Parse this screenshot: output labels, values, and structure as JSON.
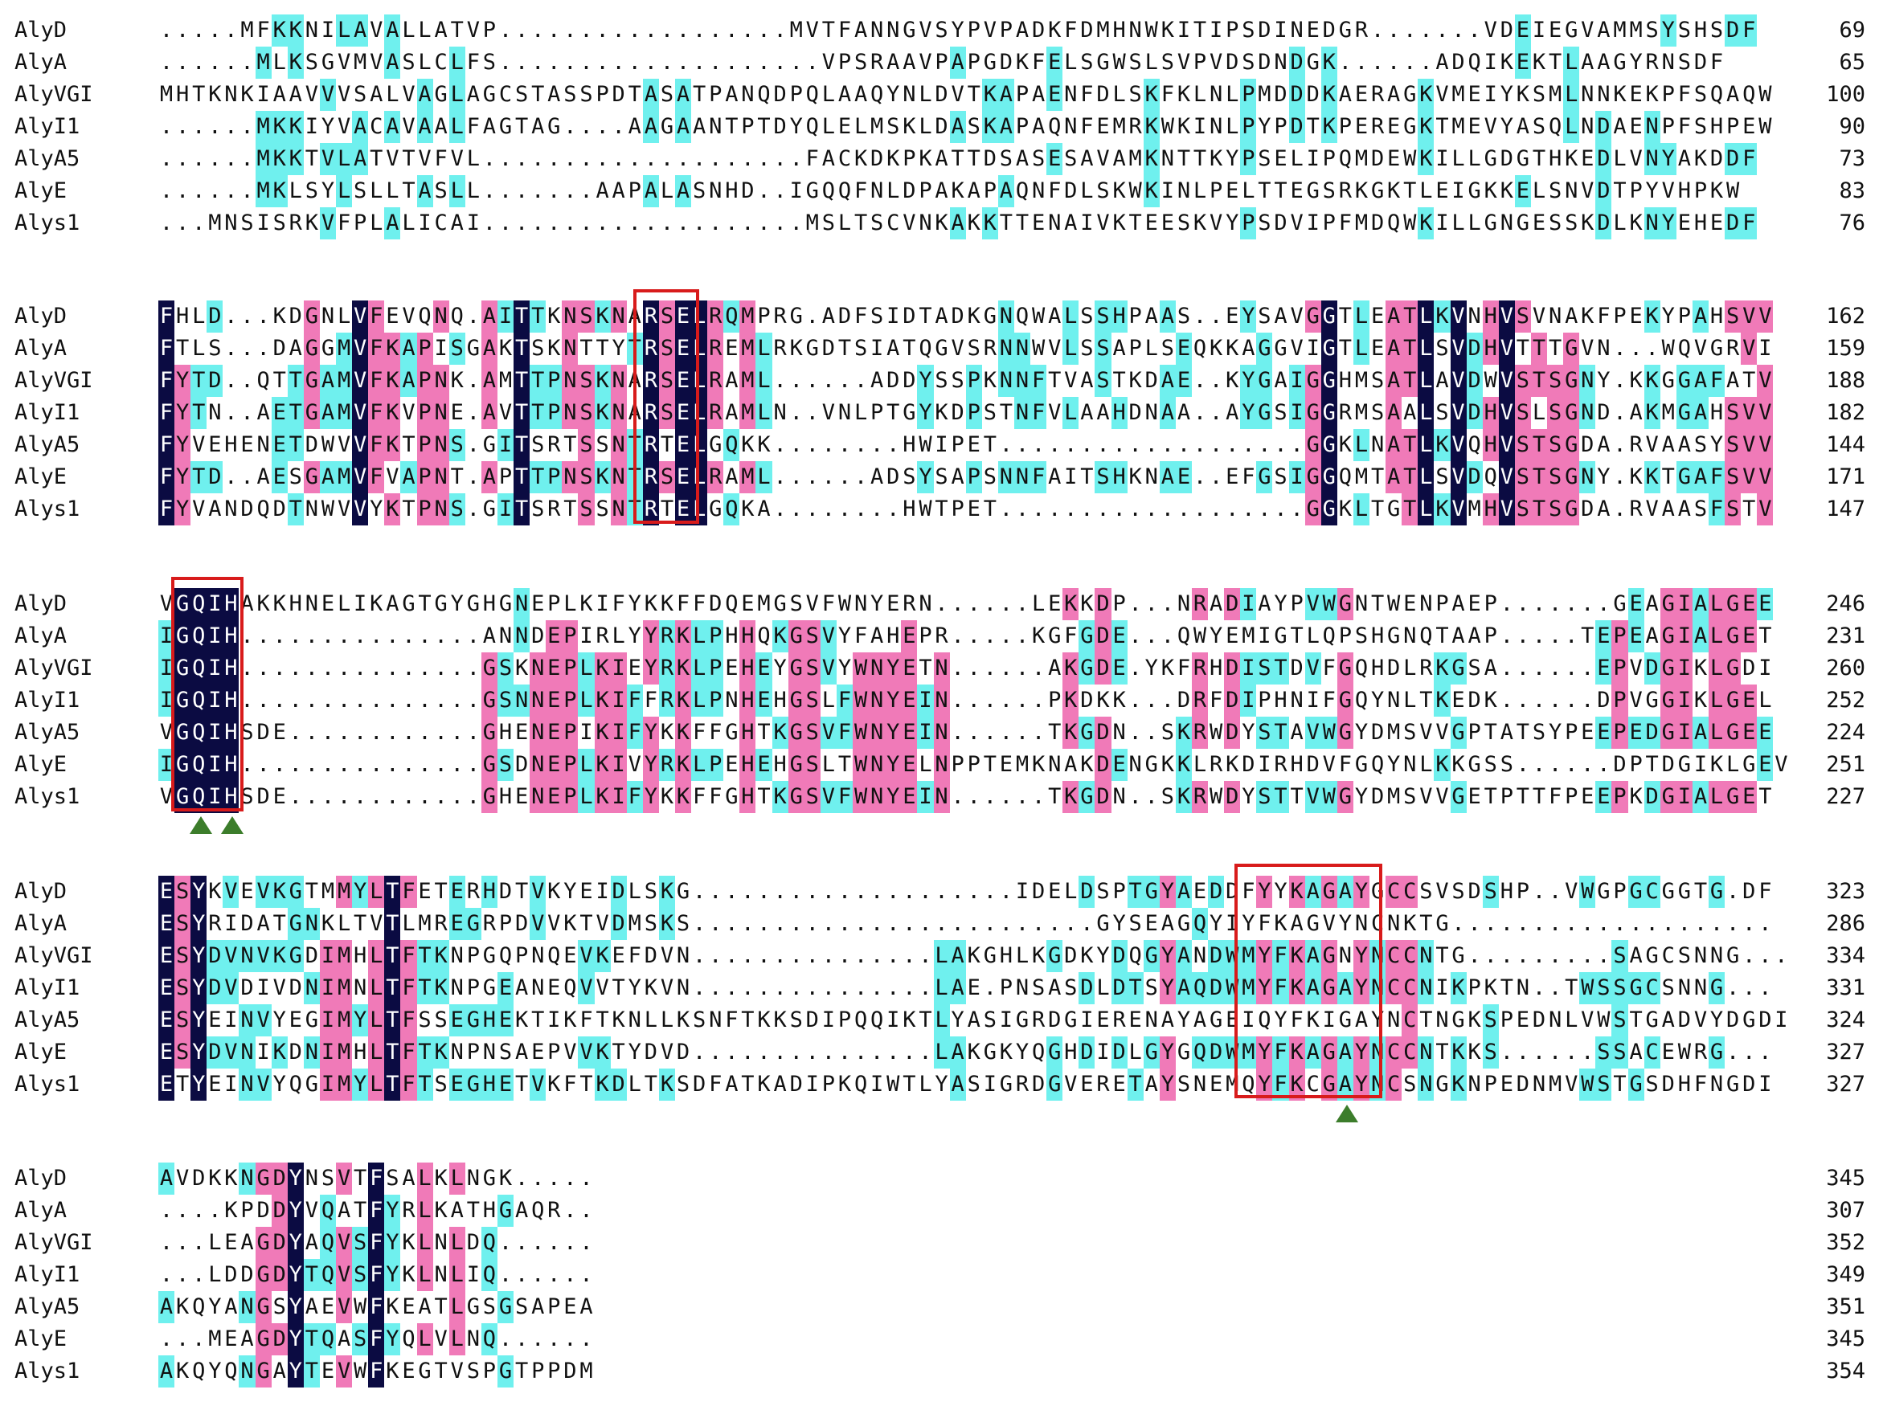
{
  "blocks": [
    {
      "rows": [
        {
          "name": "AlyD",
          "seq": ".....MFKKNILAVALLATVP..................MVTFANNGVSYPVPADKFDMHNWKITIPSDINEDGR.......VDEIEGVAMMSYSHSDF",
          "end": "69"
        },
        {
          "name": "AlyA",
          "seq": "......MLKSGVMVASLCLFS....................VPSRAAVPAPGDKFELSGWSLSVPVDSDNDGK......ADQIKEKTLAAGYRNSDF",
          "end": "65"
        },
        {
          "name": "AlyVGI",
          "seq": "MHTKNKIAAVVVSALVAGLAGCSTASSPDTASATPANQDPQLAAQYNLDVTKAPAENFDLSKFKLNLPMDDDKAERAGKVMEIYKSMLNNKEKPFSQAQW",
          "end": "100"
        },
        {
          "name": "AlyI1",
          "seq": "......MKKIYVACAVAALFAGTAG....AAGAANTPTDYQLELMSKLDASKAPAQNFEMRKWKINLPYPDTKPEREGKTMEVYASQLNDAENPFSHPEW",
          "end": "90"
        },
        {
          "name": "AlyA5",
          "seq": "......MKKTVLATVTVFVL....................FACKDKPKATTDSASESAVAMKNTTKYPSELIPQMDEWKILLGDGTHKEDLVNYAKDDF",
          "end": "73"
        },
        {
          "name": "AlyE",
          "seq": "......MKLSYLSLLTASLL.......AAPALASNHD..IGQQFNLDPAKAPAQNFDLSKWKINLPELTTEGSRKGKTLEIGKKELSNVDTPYVHPKW",
          "end": "83"
        },
        {
          "name": "Alys1",
          "seq": "...MNSISRKVFPLALICAI....................MSLTSCVNKAKKTTENAIVKTEESKVYPSDVIPFMDQWKILLGNGESSKDLKNYEHEDF",
          "end": "76"
        }
      ]
    },
    {
      "rows": [
        {
          "name": "AlyD",
          "seq": "FHLD...KDGNLVFEVQNQ.AITTKNSKNARSELRQMPRG.ADFSIDTADKGNQWALSSHPAAS..EYSAVGGTLEATLKVNHVSVNAKFPEKYPAHSVV",
          "end": "162"
        },
        {
          "name": "AlyA",
          "seq": "FTLS...DAGGMVFKAPISGAKTSKNTTYTRSELREMLRKGDTSIATQGVSRNNWVLSSAPLSEQKKAGGVIGTLEATLSVDHVTTTGVN...WQVGRVI",
          "end": "159"
        },
        {
          "name": "AlyVGI",
          "seq": "FYTD..QTTGAMVFKAPNK.AMTTPNSKNARSELRAML......ADDYSSPKNNFTVASTKDAE..KYGAIGGHMSATLAVDWVSTSGNY.KKGGAFATV",
          "end": "188"
        },
        {
          "name": "AlyI1",
          "seq": "FYTN..AETGAMVFKVPNE.AVTTPNSKNARSELRAMLN..VNLPTGYKDPSTNFVLAAHDNAA..AYGSIGGRMSAALSVDHVSLSGND.AKMGAHSVV",
          "end": "182"
        },
        {
          "name": "AlyA5",
          "seq": "FYVEHENETDWVVFKTPNS.GITSRTSSNTRTELGQKK........HWIPET...................GGKLNATLKVQHVSTSGDA.RVAASYSVV",
          "end": "144"
        },
        {
          "name": "AlyE",
          "seq": "FYTD..AESGAMVFVAPNT.APTTPNSKNTRSELRAML......ADSYSAPSNNFAITSHKNAE..EFGSIGGQMTATLSVDQVSTSGNY.KKTGAFSVV",
          "end": "171"
        },
        {
          "name": "Alys1",
          "seq": "FYVANDQDTNWVVYKTPNS.GITSRTSSNTRTELGQKA........HWTPET...................GGKLTGTLKVMHVSTSGDA.RVAASFSTV",
          "end": "147"
        }
      ]
    },
    {
      "rows": [
        {
          "name": "AlyD",
          "seq": "VGQIHAKKHNELIKAGTGYGHGNEPLKIFYKKFFDQEMGSVFWNYERN......LEKKDP...NRADIAYPVWGNTWENPAEP.......GEAGIALGEE",
          "end": "246"
        },
        {
          "name": "AlyA",
          "seq": "IGQIH...............ANNDEPIRLYYRKLPHHQKGSVYFAHEPR.....KGFGDE...QWYEMIGTLQPSHGNQTAAP.....TEPEAGIALGET",
          "end": "231"
        },
        {
          "name": "AlyVGI",
          "seq": "IGQIH...............GSKNEPLKIEYRKLPEHEYGSVYWNYETN......AKGDE.YKFRHDISTDVFGQHDLRKGSA......EPVDGIKLGDI",
          "end": "260"
        },
        {
          "name": "AlyI1",
          "seq": "IGQIH...............GSNNEPLKIFFRKLPNHEHGSLFWNYEIN......PKDKK...DRFDIPHNIFGQYNLTKEDK......DPVGGIKLGEL",
          "end": "252"
        },
        {
          "name": "AlyA5",
          "seq": "VGQIHSDE............GHENEPIKIFYKKFFGHTKGSVFWNYEIN......TKGDN..SKRWDYSTAVWGYDMSVVGPTATSYPEEPEDGIALGEE",
          "end": "224"
        },
        {
          "name": "AlyE",
          "seq": "IGQIH...............GSDNEPLKIVYRKLPEHEHGSLTWNYELNPPTEMKNAKDENGKKLRKDIRHDVFGQYNLKKGSS......DPTDGIKLGEV",
          "end": "251"
        },
        {
          "name": "Alys1",
          "seq": "VGQIHSDE............GHENEPLKIFYKKFFGHTKGSVFWNYEIN......TKGDN..SKRWDYSTTVWGYDMSVVGETPTTFPEEPKDGIALGET",
          "end": "227"
        }
      ]
    },
    {
      "rows": [
        {
          "name": "AlyD",
          "seq": "ESYKVEVKGTMMYLTFETERHDTVKYEIDLSKG....................IDELDSPTGYAEDDFYYKAGAYGCCSVSDSHP..VWGPGCGGTG.DF",
          "end": "323"
        },
        {
          "name": "AlyA",
          "seq": "ESYRIDATGNKLTVTLMREGRPDVVKTVDMSKS.........................GYSEAGQYIYFKAGVYNCNKTG....................",
          "end": "286"
        },
        {
          "name": "AlyVGI",
          "seq": "ESYDVNVKGDIMHLTFTKNPGQPNQEVKEFDVN...............LAKGHLKGDKYDQGYANDWMYFKAGNYNCCNTG.........SAGCSNNG...",
          "end": "334"
        },
        {
          "name": "AlyI1",
          "seq": "ESYDVDIVDNIMNLTFTKNPGEANEQVVTYKVN...............LAE.PNSASDLDTSYAQDWMYFKAGAYNCCNIKPKTN..TWSSGCSNNG...",
          "end": "331"
        },
        {
          "name": "AlyA5",
          "seq": "ESYEINVYEGIMYLTFSSEGHEKTIKFTKNLLKSNFTKKSDIPQQIKTLYASIGRDGIERENAYAGEIQYFKIGAYNCTNGKSPEDNLVWSTGADVYDGDI",
          "end": "324"
        },
        {
          "name": "AlyE",
          "seq": "ESYDVNIKDNIMHLTFTKNPNSAEPVVKTYDVD...............LAKGKYQGHDIDLGYGQDWMYFKAGAYNCCNTKKS......SSACEWRG...",
          "end": "327"
        },
        {
          "name": "Alys1",
          "seq": "ETYEINVYQGIMYLTFTSEGHETVKFTKDLTKSDFATKADIPKQIWTLYASIGRDGVERETAYSNEMQYFKCGAYNCSNGKNPEDNMVWSTGSDHFNGDI",
          "end": "327"
        }
      ]
    },
    {
      "rows": [
        {
          "name": "AlyD",
          "seq": "AVDKKNGDYNSVTFSALKLNGK.....",
          "end": "345"
        },
        {
          "name": "AlyA",
          "seq": "....KPDDYVQATFYRLKATHGAQR..",
          "end": "307"
        },
        {
          "name": "AlyVGI",
          "seq": "...LEAGDYAQVSFYKLNLDQ......",
          "end": "352"
        },
        {
          "name": "AlyI1",
          "seq": "...LDDGDYTQVSFYKLNLIQ......",
          "end": "349"
        },
        {
          "name": "AlyA5",
          "seq": "AKQYANGSYAEVWFKEATLGSGSAPEA",
          "end": "351"
        },
        {
          "name": "AlyE",
          "seq": "...MEAGDYTQASFYQLVLNQ......",
          "end": "345"
        },
        {
          "name": "Alys1",
          "seq": "AKQYQNGAYTEVWFKEGTVSPGTPPDM",
          "end": "354"
        }
      ]
    }
  ],
  "colors": {
    "identical": "#0b0b42",
    "high": "#f07ab8",
    "similar": "#6ff0ee",
    "box": "#d81b1b",
    "marker": "#3c7d2b"
  }
}
